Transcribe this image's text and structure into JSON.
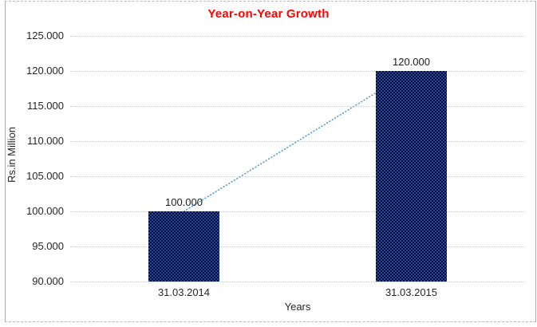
{
  "chart_data": {
    "type": "bar",
    "title": "Year-on-Year Growth",
    "title_color": "#FF0000",
    "xlabel": "Years",
    "ylabel": "Rs.in Million",
    "categories": [
      "31.03.2014",
      "31.03.2015"
    ],
    "values": [
      100000,
      120000
    ],
    "value_labels": [
      "100.000",
      "120.000"
    ],
    "ylim": [
      90000,
      125000
    ],
    "y_ticks": [
      {
        "value": 125000,
        "label": "125.000"
      },
      {
        "value": 120000,
        "label": "120.000"
      },
      {
        "value": 115000,
        "label": "115.000"
      },
      {
        "value": 110000,
        "label": "110.000"
      },
      {
        "value": 105000,
        "label": "105.000"
      },
      {
        "value": 100000,
        "label": "100.000"
      },
      {
        "value": 95000,
        "label": "95.000"
      },
      {
        "value": 90000,
        "label": "90.000"
      }
    ],
    "grid": "horizontal-dotted",
    "legend": "none",
    "bar_color": "#12306b",
    "bar_pattern_colors": [
      "#2244aa",
      "#081028"
    ],
    "gridline_color": "#c9c9c9",
    "trendline": {
      "type": "linear",
      "style": "dotted",
      "color": "#5b9bd5",
      "from_value": 100000,
      "to_value": 120000
    }
  }
}
